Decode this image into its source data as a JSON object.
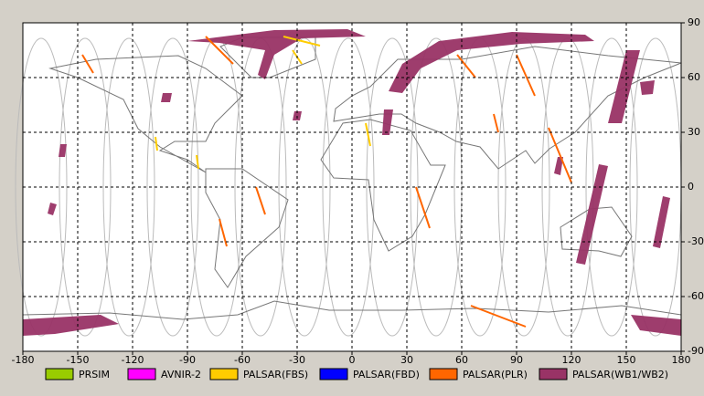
{
  "map": {
    "xlim": [
      -180,
      180
    ],
    "ylim": [
      -90,
      90
    ],
    "xticks": [
      -180,
      -150,
      -120,
      -90,
      -60,
      -30,
      0,
      30,
      60,
      90,
      120,
      150,
      180
    ],
    "yticks": [
      -90,
      -60,
      -30,
      0,
      30,
      60,
      90
    ],
    "grid": true,
    "legend": [
      {
        "name": "PRSIM",
        "color": "#99cc00"
      },
      {
        "name": "AVNIR-2",
        "color": "#ff00ff"
      },
      {
        "name": "PALSAR(FBS)",
        "color": "#ffcc00"
      },
      {
        "name": "PALSAR(FBD)",
        "color": "#0000ff"
      },
      {
        "name": "PALSAR(PLR)",
        "color": "#ff6600"
      },
      {
        "name": "PALSAR(WB1/WB2)",
        "color": "#993366"
      }
    ]
  }
}
